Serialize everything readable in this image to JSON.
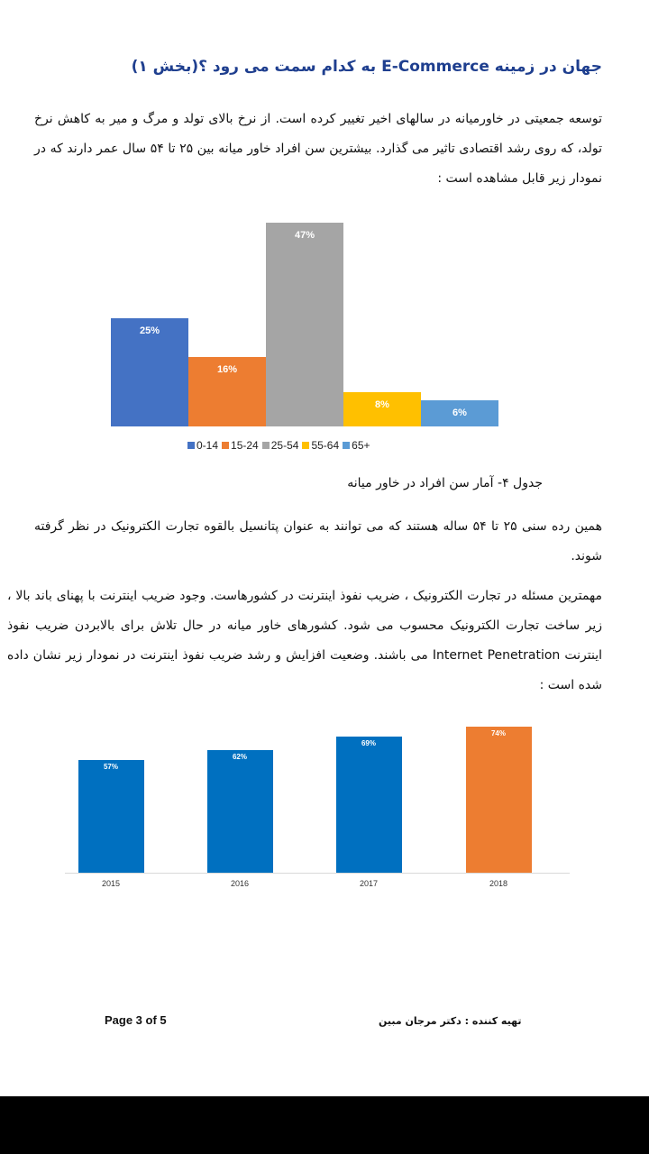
{
  "title": "جهان در زمینه E-Commerce به کدام سمت می رود ؟(بخش ۱)",
  "paragraphs": {
    "p1": "توسعه جمعیتی در خاورمیانه در سالهای اخیر تغییر کرده است. از نرخ بالای تولد و مرگ و میر به کاهش نرخ تولد، که روی رشد اقتصادی تاثیر می گذارد. بیشترین سن افراد خاور میانه بین ۲۵ تا ۵۴ سال عمر دارند که در نمودار زیر قابل مشاهده است :",
    "p2": "همین رده سنی ۲۵ تا ۵۴ ساله هستند که می توانند به عنوان پتانسیل بالقوه تجارت الکترونیک در نظر گرفته شوند.",
    "p3": "مهمترین مسئله در تجارت الکترونیک ، ضریب نفوذ اینترنت در کشورهاست. وجود ضریب اینترنت با پهنای باند بالا ، زیر ساخت تجارت الکترونیک محسوب می شود. کشورهای خاور میانه در حال تلاش برای بالابردن ضریب نفوذ اینترنت Internet Penetration می باشند. وضعیت افزایش و رشد ضریب نفوذ اینترنت در نمودار زیر نشان داده شده است :"
  },
  "caption": "جدول ۴- آمار سن افراد در خاور میانه",
  "chart_data": [
    {
      "type": "bar",
      "categories": [
        "0-14",
        "15-24",
        "25-54",
        "55-64",
        "65+"
      ],
      "values": [
        25,
        16,
        47,
        8,
        6
      ],
      "labels": [
        "25%",
        "16%",
        "47%",
        "8%",
        "6%"
      ],
      "colors": [
        "#4472c4",
        "#ed7d31",
        "#a5a5a5",
        "#ffc000",
        "#5b9bd5"
      ],
      "ylim": [
        0,
        47
      ],
      "legend": "bottom"
    },
    {
      "type": "bar",
      "categories": [
        "2015",
        "2016",
        "2017",
        "2018"
      ],
      "values": [
        57,
        62,
        69,
        74
      ],
      "labels": [
        "57%",
        "62%",
        "69%",
        "74%"
      ],
      "colors": [
        "#0070c0",
        "#0070c0",
        "#0070c0",
        "#ed7d31"
      ],
      "ylim": [
        0,
        74
      ]
    }
  ],
  "footer": {
    "page": "Page 3 of 5",
    "author": "تهیه کننده : دکتر مرجان مبین"
  }
}
